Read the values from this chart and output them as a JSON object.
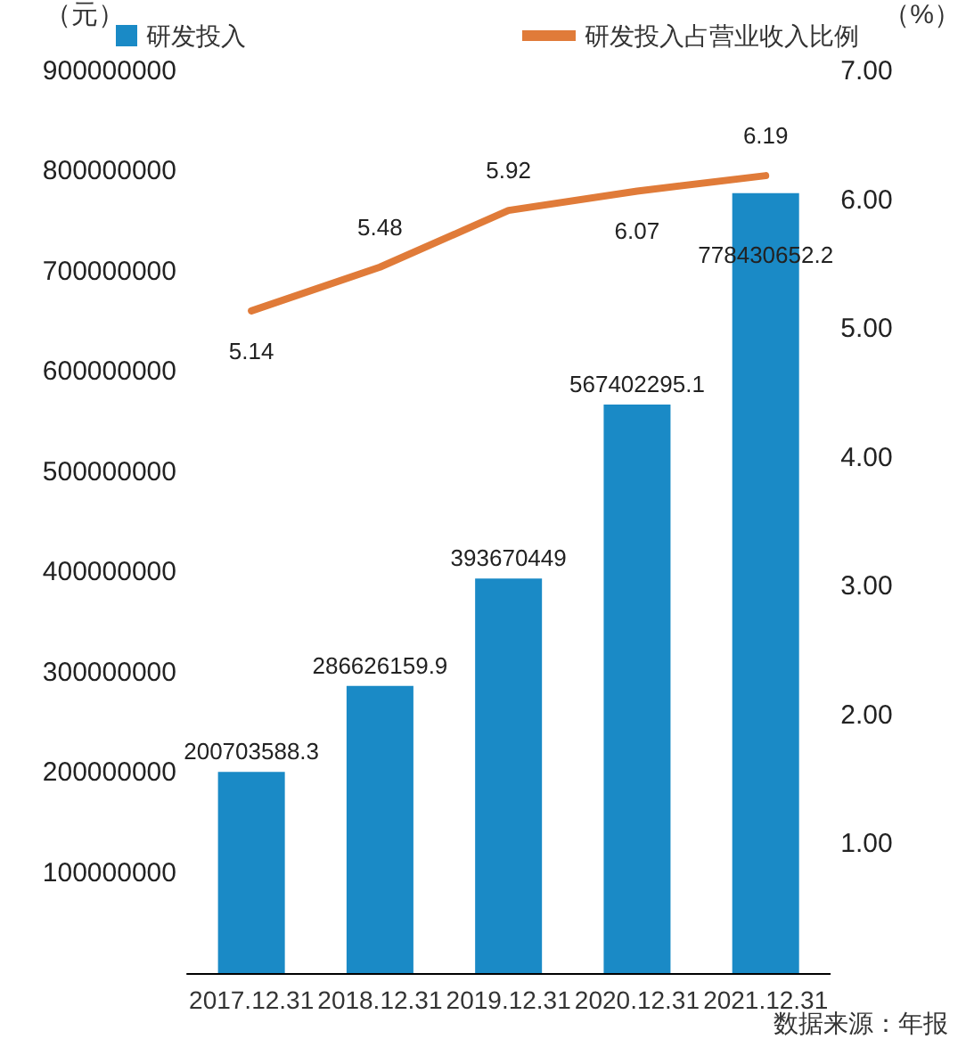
{
  "chart_data": {
    "type": "bar",
    "ylabel": "（元）",
    "y2label": "（%）",
    "categories": [
      "2017.12.31",
      "2018.12.31",
      "2019.12.31",
      "2020.12.31",
      "2021.12.31"
    ],
    "series": [
      {
        "name": "研发投入",
        "color": "#1a8ac6",
        "values": [
          200703588.3,
          286626159.9,
          393670449,
          567402295.1,
          778430652.2
        ]
      },
      {
        "name": "研发投入占营业收入比例",
        "type": "line",
        "axis": "y2",
        "color": "#e07b39",
        "values": [
          5.14,
          5.48,
          5.92,
          6.07,
          6.19
        ]
      }
    ],
    "ylim": [
      0,
      900000000
    ],
    "yticks": [
      100000000,
      200000000,
      300000000,
      400000000,
      500000000,
      600000000,
      700000000,
      800000000,
      900000000
    ],
    "y2lim": [
      0,
      7
    ],
    "y2ticks": [
      {
        "value": 1,
        "label": "1.00"
      },
      {
        "value": 2,
        "label": "2.00"
      },
      {
        "value": 3,
        "label": "3.00"
      },
      {
        "value": 4,
        "label": "4.00"
      },
      {
        "value": 5,
        "label": "5.00"
      },
      {
        "value": 6,
        "label": "6.00"
      },
      {
        "value": 7,
        "label": "7.00"
      }
    ],
    "data_labels": true,
    "grid": false,
    "legend": "top",
    "marker": "none",
    "line_style": "solid",
    "annotations": [
      "数据来源：年报"
    ]
  }
}
